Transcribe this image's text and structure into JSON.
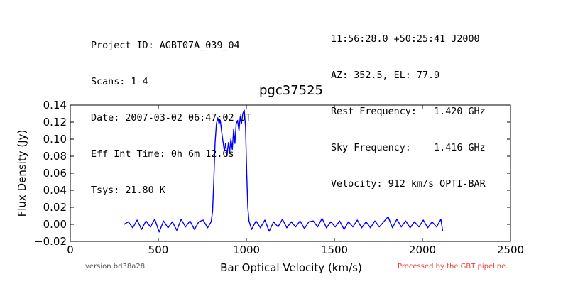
{
  "header": {
    "left": [
      "Project ID: AGBT07A_039_04",
      "Scans: 1-4",
      "Date: 2007-03-02 06:47:02 UT",
      "Eff Int Time: 0h 6m 12.6s",
      "Tsys: 21.80 K"
    ],
    "right": [
      "11:56:28.0 +50:25:41 J2000",
      "AZ: 352.5, EL: 77.9",
      "Rest Frequency:   1.420 GHz",
      "Sky Frequency:    1.416 GHz",
      "Velocity: 912 km/s OPTI-BAR"
    ]
  },
  "footer": {
    "version": "version bd38a28",
    "processed": "Processed by the GBT pipeline."
  },
  "colors": {
    "line": "#0000ff",
    "processed_text": "#e8403a"
  },
  "chart_data": {
    "type": "line",
    "title": "pgc37525",
    "xlabel": "Bar Optical Velocity (km/s)",
    "ylabel": "Flux Density (Jy)",
    "xlim": [
      0,
      2500
    ],
    "ylim": [
      -0.02,
      0.14
    ],
    "xticks": [
      0,
      500,
      1000,
      1500,
      2000,
      2500
    ],
    "xtick_labels": [
      "0",
      "500",
      "1000",
      "1500",
      "2000",
      "2500"
    ],
    "yticks": [
      -0.02,
      0.0,
      0.02,
      0.04,
      0.06,
      0.08,
      0.1,
      0.12,
      0.14
    ],
    "ytick_labels": [
      "−0.02",
      "0.00",
      "0.02",
      "0.04",
      "0.06",
      "0.08",
      "0.10",
      "0.12",
      "0.14"
    ],
    "grid": false,
    "series": [
      {
        "x": [
          305,
          330,
          355,
          380,
          405,
          430,
          455,
          480,
          505,
          530,
          555,
          580,
          605,
          630,
          655,
          680,
          705,
          730,
          755,
          780,
          800,
          808,
          815,
          822,
          830,
          838,
          845,
          852,
          860,
          868,
          875,
          882,
          890,
          898,
          905,
          912,
          920,
          928,
          935,
          942,
          950,
          958,
          965,
          972,
          980,
          988,
          995,
          1002,
          1008,
          1015,
          1030,
          1055,
          1080,
          1105,
          1130,
          1155,
          1180,
          1205,
          1230,
          1255,
          1280,
          1305,
          1330,
          1355,
          1380,
          1405,
          1430,
          1455,
          1480,
          1505,
          1530,
          1555,
          1580,
          1605,
          1630,
          1655,
          1680,
          1705,
          1730,
          1755,
          1780,
          1805,
          1830,
          1855,
          1880,
          1905,
          1930,
          1955,
          1980,
          2005,
          2030,
          2055,
          2080,
          2105,
          2115
        ],
        "y": [
          0.0,
          0.003,
          -0.004,
          0.005,
          -0.006,
          0.004,
          -0.003,
          0.006,
          -0.009,
          0.004,
          -0.004,
          0.003,
          -0.007,
          0.006,
          -0.003,
          0.004,
          -0.006,
          0.003,
          0.005,
          -0.004,
          0.003,
          0.015,
          0.05,
          0.095,
          0.118,
          0.125,
          0.118,
          0.122,
          0.108,
          0.096,
          0.086,
          0.095,
          0.08,
          0.096,
          0.085,
          0.1,
          0.088,
          0.112,
          0.095,
          0.118,
          0.122,
          0.11,
          0.126,
          0.118,
          0.13,
          0.134,
          0.115,
          0.06,
          0.02,
          0.004,
          -0.006,
          0.004,
          -0.004,
          0.005,
          -0.008,
          0.003,
          -0.003,
          0.006,
          -0.004,
          0.003,
          -0.003,
          0.004,
          -0.005,
          0.003,
          0.004,
          -0.003,
          0.007,
          -0.004,
          0.003,
          -0.003,
          0.004,
          -0.006,
          0.003,
          -0.003,
          0.005,
          -0.004,
          0.003,
          -0.004,
          0.004,
          -0.003,
          0.003,
          0.009,
          -0.004,
          0.006,
          -0.003,
          0.004,
          -0.004,
          0.003,
          -0.003,
          0.005,
          -0.004,
          0.003,
          -0.003,
          0.006,
          -0.008
        ]
      }
    ]
  }
}
